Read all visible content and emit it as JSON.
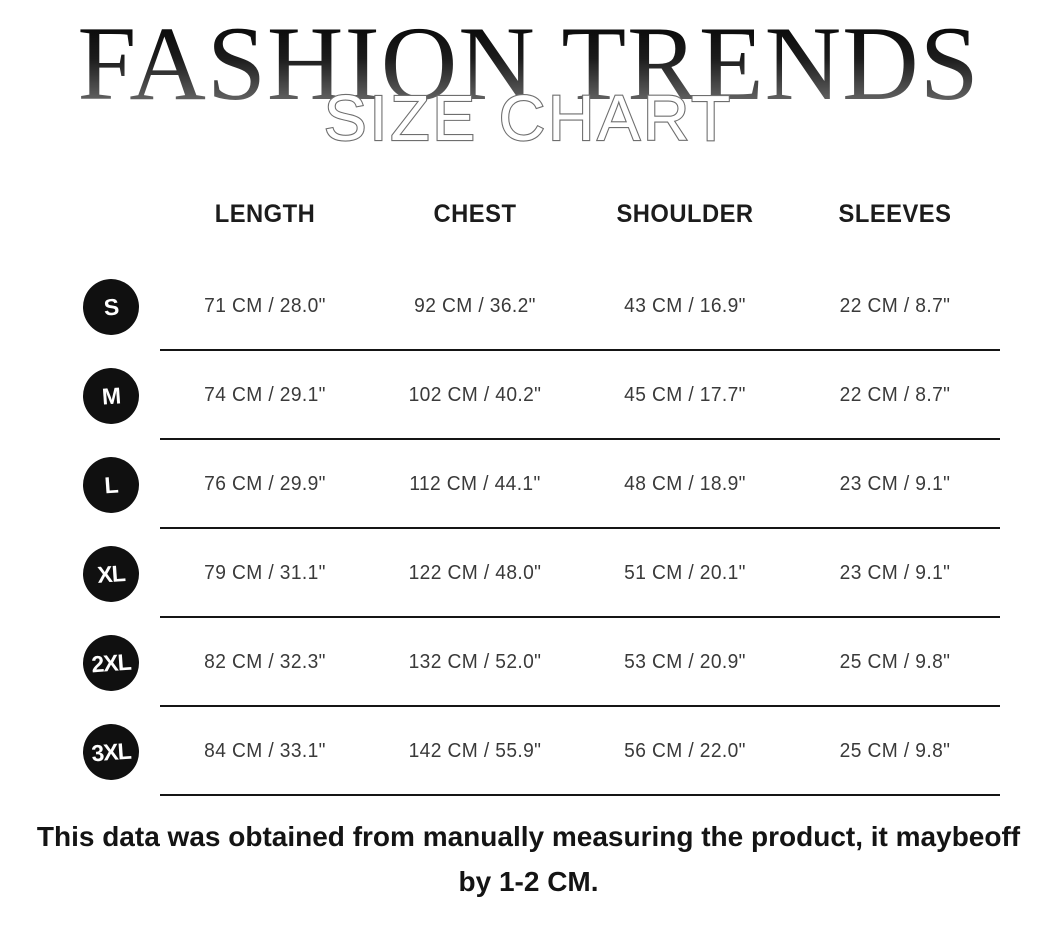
{
  "header": {
    "brand_title": "FASHION TRENDS",
    "overlay_title": "SIZE CHART",
    "title_gradient_top": "#050505",
    "title_gradient_bottom": "#9a9a9a"
  },
  "table": {
    "columns": [
      "LENGTH",
      "CHEST",
      "SHOULDER",
      "SLEEVES"
    ],
    "badge_color": "#101010",
    "badge_text_color": "#ffffff",
    "rows": [
      {
        "size": "S",
        "values": [
          "71 CM / 28.0\"",
          "92 CM / 36.2\"",
          "43 CM / 16.9\"",
          "22 CM / 8.7\""
        ]
      },
      {
        "size": "M",
        "values": [
          "74 CM / 29.1\"",
          "102 CM / 40.2\"",
          "45 CM / 17.7\"",
          "22 CM / 8.7\""
        ]
      },
      {
        "size": "L",
        "values": [
          "76 CM / 29.9\"",
          "112 CM / 44.1\"",
          "48 CM / 18.9\"",
          "23 CM / 9.1\""
        ]
      },
      {
        "size": "XL",
        "values": [
          "79 CM / 31.1\"",
          "122 CM / 48.0\"",
          "51 CM / 20.1\"",
          "23 CM / 9.1\""
        ]
      },
      {
        "size": "2XL",
        "values": [
          "82 CM / 32.3\"",
          "132 CM / 52.0\"",
          "53 CM / 20.9\"",
          "25 CM / 9.8\""
        ]
      },
      {
        "size": "3XL",
        "values": [
          "84 CM / 33.1\"",
          "142 CM / 55.9\"",
          "56 CM / 22.0\"",
          "25 CM / 9.8\""
        ]
      }
    ]
  },
  "footnote": {
    "line1": "This data was obtained from manually measuring the product, it maybeoff",
    "line2": "by 1-2 CM."
  },
  "chart_data": {
    "type": "table",
    "title": "FASHION TRENDS SIZE CHART",
    "columns": [
      "SIZE",
      "LENGTH",
      "CHEST",
      "SHOULDER",
      "SLEEVES"
    ],
    "rows": [
      [
        "S",
        "71 CM / 28.0\"",
        "92 CM / 36.2\"",
        "43 CM / 16.9\"",
        "22 CM / 8.7\""
      ],
      [
        "M",
        "74 CM / 29.1\"",
        "102 CM / 40.2\"",
        "45 CM / 17.7\"",
        "22 CM / 8.7\""
      ],
      [
        "L",
        "76 CM / 29.9\"",
        "112 CM / 44.1\"",
        "48 CM / 18.9\"",
        "23 CM / 9.1\""
      ],
      [
        "XL",
        "79 CM / 31.1\"",
        "122 CM / 48.0\"",
        "51 CM / 20.1\"",
        "23 CM / 9.1\""
      ],
      [
        "2XL",
        "82 CM / 32.3\"",
        "132 CM / 52.0\"",
        "53 CM / 20.9\"",
        "25 CM / 9.8\""
      ],
      [
        "3XL",
        "84 CM / 33.1\"",
        "142 CM / 55.9\"",
        "56 CM / 22.0\"",
        "25 CM / 9.8\""
      ]
    ]
  }
}
